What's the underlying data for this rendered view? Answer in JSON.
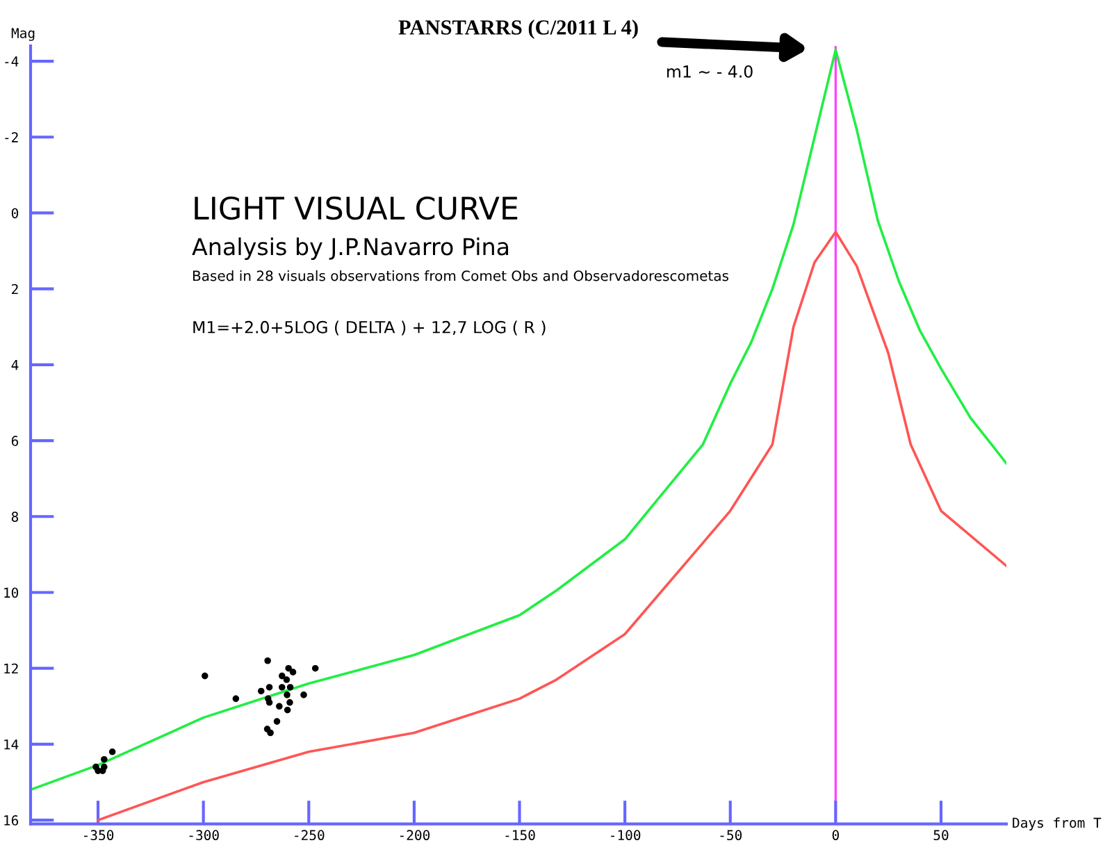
{
  "chart_data": {
    "type": "line",
    "title": "PANSTARRS (C/2011 L 4)",
    "xlabel": "Days from T",
    "ylabel": "Mag",
    "xlim": [
      -382,
      81
    ],
    "xticks": [
      -350,
      -300,
      -250,
      -200,
      -150,
      -100,
      -50,
      0,
      50
    ],
    "ylim": [
      16.1,
      -4.4
    ],
    "yticks": [
      -4,
      -2,
      0,
      2,
      4,
      6,
      8,
      10,
      12,
      14,
      16
    ],
    "grid": false,
    "legend": false,
    "series": [
      {
        "type": "line",
        "color": "#22ee44",
        "x": [
          -382,
          -350,
          -300,
          -250,
          -200,
          -150,
          -132.5,
          -100,
          -63,
          -50,
          -40,
          -30,
          -20,
          -10,
          0,
          10,
          20,
          30,
          40,
          50,
          64,
          74,
          81
        ],
        "values": [
          15.2,
          14.55,
          13.3,
          12.4,
          11.65,
          10.6,
          9.95,
          8.6,
          6.1,
          4.5,
          3.4,
          2.0,
          0.3,
          -2.0,
          -4.3,
          -2.2,
          0.2,
          1.8,
          3.1,
          4.1,
          5.4,
          6.1,
          6.6
        ]
      },
      {
        "type": "line",
        "color": "#ff5555",
        "x": [
          -350,
          -300,
          -250,
          -200,
          -150,
          -132.5,
          -100,
          -50,
          -30,
          -20,
          -10,
          0,
          10,
          25,
          35.6,
          50,
          81
        ],
        "values": [
          16.0,
          15.0,
          14.2,
          13.7,
          12.8,
          12.3,
          11.1,
          7.85,
          6.1,
          3.0,
          1.3,
          0.5,
          1.4,
          3.7,
          6.1,
          7.85,
          9.3
        ]
      },
      {
        "type": "scatter",
        "color": "#000000",
        "marker": "circle",
        "x": [
          -299.3,
          -284.6,
          -269.5,
          -272.6,
          -268.7,
          -269.3,
          -268.7,
          -269.7,
          -268.2,
          -265.1,
          -264,
          -262.7,
          -262.7,
          -260.5,
          -260.3,
          -260.1,
          -259.6,
          -259,
          -258.8,
          -257.5,
          -252.4,
          -246.9,
          -351,
          -350,
          -347.8,
          -347.1,
          -347.1,
          -343.2
        ],
        "values": [
          12.2,
          12.8,
          11.8,
          12.6,
          12.5,
          12.8,
          12.9,
          13.6,
          13.7,
          13.4,
          13.0,
          12.2,
          12.5,
          12.3,
          12.7,
          13.1,
          12.0,
          12.9,
          12.5,
          12.1,
          12.7,
          12.0,
          14.6,
          14.7,
          14.7,
          14.6,
          14.4,
          14.2
        ]
      }
    ],
    "ref_lines": [
      {
        "axis": "x",
        "value": 0,
        "color": "#ff44ff"
      }
    ],
    "annotations": [
      "m1 ~ - 4.0",
      "LIGHT VISUAL CURVE",
      "Analysis by J.P.Navarro Pina",
      "Based in 28 visuals observations from Comet Obs and Observadorescometas",
      "M1=+2.0+5LOG ( DELTA ) + 12,7 LOG ( R )"
    ]
  }
}
